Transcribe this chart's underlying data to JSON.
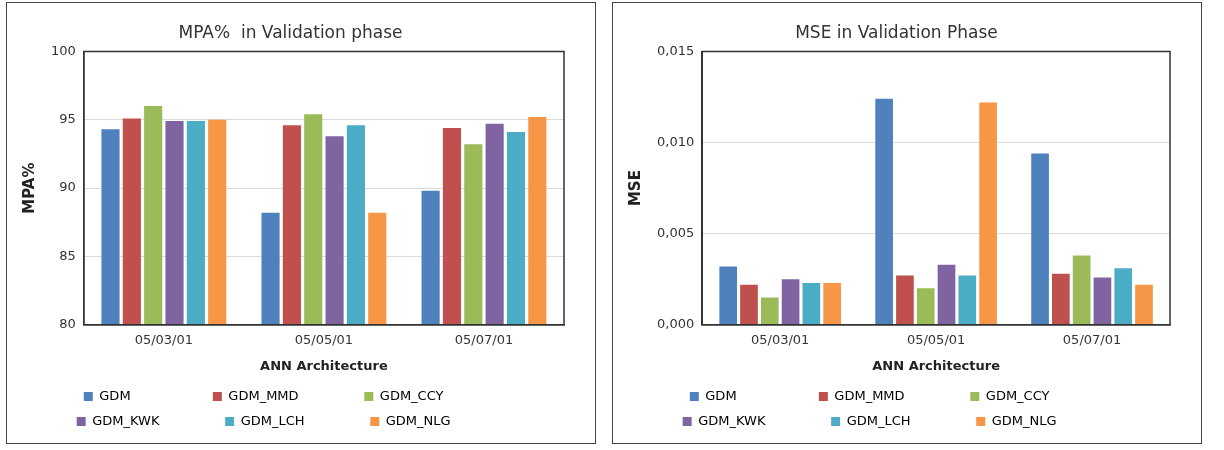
{
  "chart_data": [
    {
      "type": "bar",
      "title": "MPA%  in Validation phase",
      "xlabel": "ANN Architecture",
      "ylabel": "MPA%",
      "categories": [
        "05/03/01",
        "05/05/01",
        "05/07/01"
      ],
      "ylim": [
        80,
        100
      ],
      "yticks": [
        80,
        85,
        90,
        95,
        100
      ],
      "grid": "y",
      "legend": "bottom",
      "series": [
        {
          "name": "GDM",
          "color": "#4f81bd",
          "values": [
            94.3,
            88.2,
            89.8
          ]
        },
        {
          "name": "GDM_MMD",
          "color": "#c0504d",
          "values": [
            95.1,
            94.6,
            94.4
          ]
        },
        {
          "name": "GDM_CCY",
          "color": "#9bbb59",
          "values": [
            96.0,
            95.4,
            93.2
          ]
        },
        {
          "name": "GDM_KWK",
          "color": "#8064a2",
          "values": [
            94.9,
            93.8,
            94.7
          ]
        },
        {
          "name": "GDM_LCH",
          "color": "#4bacc6",
          "values": [
            94.9,
            94.6,
            94.1
          ]
        },
        {
          "name": "GDM_NLG",
          "color": "#f79646",
          "values": [
            95.0,
            88.2,
            95.2
          ]
        }
      ]
    },
    {
      "type": "bar",
      "title": "MSE in Validation Phase",
      "xlabel": "ANN Architecture",
      "ylabel": "MSE",
      "categories": [
        "05/03/01",
        "05/05/01",
        "05/07/01"
      ],
      "ylim": [
        0,
        0.015
      ],
      "yticks": [
        {
          "value": 0,
          "label": "0,000"
        },
        {
          "value": 0.005,
          "label": "0,005"
        },
        {
          "value": 0.01,
          "label": "0,010"
        },
        {
          "value": 0.015,
          "label": "0,015"
        }
      ],
      "grid": "y",
      "legend": "bottom",
      "series": [
        {
          "name": "GDM",
          "color": "#4f81bd",
          "values": [
            0.0032,
            0.0124,
            0.0094
          ]
        },
        {
          "name": "GDM_MMD",
          "color": "#c0504d",
          "values": [
            0.0022,
            0.0027,
            0.0028
          ]
        },
        {
          "name": "GDM_CCY",
          "color": "#9bbb59",
          "values": [
            0.0015,
            0.002,
            0.0038
          ]
        },
        {
          "name": "GDM_KWK",
          "color": "#8064a2",
          "values": [
            0.0025,
            0.0033,
            0.0026
          ]
        },
        {
          "name": "GDM_LCH",
          "color": "#4bacc6",
          "values": [
            0.0023,
            0.0027,
            0.0031
          ]
        },
        {
          "name": "GDM_NLG",
          "color": "#f79646",
          "values": [
            0.0023,
            0.0122,
            0.0022
          ]
        }
      ]
    }
  ]
}
